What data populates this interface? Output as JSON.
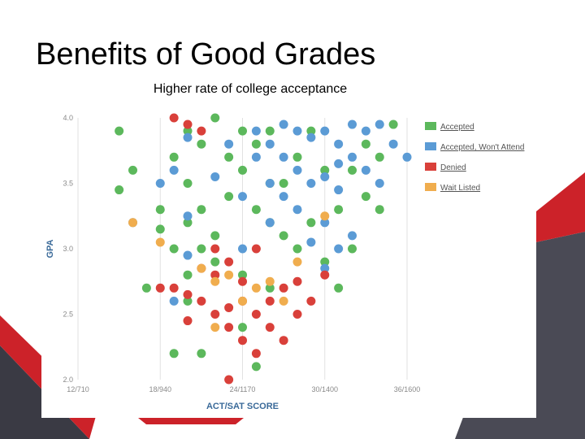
{
  "slide": {
    "title": "Benefits of Good Grades",
    "subtitle": "Higher rate of college acceptance"
  },
  "colors": {
    "accepted": "#5cb85c",
    "accepted_wont_attend": "#5b9bd5",
    "denied": "#d9403a",
    "wait_listed": "#f0ad4e",
    "accent_red": "#cc2229",
    "accent_gray": "#3a3a44"
  },
  "chart_data": {
    "type": "scatter",
    "title": "",
    "xlabel": "ACT/SAT SCORE",
    "ylabel": "GPA",
    "x_ticks": [
      "12/710",
      "18/940",
      "24/1170",
      "30/1400",
      "36/1600"
    ],
    "x_tick_values": [
      12,
      18,
      24,
      30,
      36
    ],
    "xlim": [
      12,
      36
    ],
    "y_ticks": [
      "2.0",
      "2.5",
      "3.0",
      "3.5",
      "4.0"
    ],
    "y_tick_values": [
      2.0,
      2.5,
      3.0,
      3.5,
      4.0
    ],
    "ylim": [
      2.0,
      4.0
    ],
    "grid": "vertical",
    "legend_position": "right",
    "series": [
      {
        "name": "Accepted",
        "color": "#5cb85c",
        "points": [
          [
            15,
            3.9
          ],
          [
            16,
            3.6
          ],
          [
            15,
            3.45
          ],
          [
            19,
            3.0
          ],
          [
            18,
            3.3
          ],
          [
            19,
            3.7
          ],
          [
            20,
            3.5
          ],
          [
            20,
            3.2
          ],
          [
            21,
            3.3
          ],
          [
            21,
            3.0
          ],
          [
            22,
            3.1
          ],
          [
            23,
            3.4
          ],
          [
            24,
            3.6
          ],
          [
            25,
            3.8
          ],
          [
            26,
            3.2
          ],
          [
            27,
            3.5
          ],
          [
            28,
            3.7
          ],
          [
            29,
            3.9
          ],
          [
            30,
            3.6
          ],
          [
            31,
            3.3
          ],
          [
            32,
            3.0
          ],
          [
            33,
            3.4
          ],
          [
            34,
            3.7
          ],
          [
            35,
            3.95
          ],
          [
            22,
            2.9
          ],
          [
            24,
            2.8
          ],
          [
            26,
            2.7
          ],
          [
            20,
            2.6
          ],
          [
            19,
            2.2
          ],
          [
            21,
            2.2
          ],
          [
            25,
            2.1
          ],
          [
            24,
            2.4
          ],
          [
            20,
            2.8
          ],
          [
            28,
            3.0
          ],
          [
            30,
            2.9
          ],
          [
            31,
            2.7
          ],
          [
            23,
            3.7
          ],
          [
            26,
            3.9
          ],
          [
            29,
            3.2
          ],
          [
            27,
            3.1
          ],
          [
            21,
            3.8
          ],
          [
            22,
            4.0
          ],
          [
            18,
            3.15
          ],
          [
            17,
            2.7
          ],
          [
            25,
            3.3
          ],
          [
            32,
            3.6
          ],
          [
            34,
            3.3
          ],
          [
            33,
            3.8
          ],
          [
            24,
            3.9
          ],
          [
            26,
            3.5
          ],
          [
            20,
            3.9
          ]
        ]
      },
      {
        "name": "Accepted, Won't Attend",
        "color": "#5b9bd5",
        "points": [
          [
            25,
            3.9
          ],
          [
            26,
            3.8
          ],
          [
            27,
            3.7
          ],
          [
            28,
            3.6
          ],
          [
            29,
            3.5
          ],
          [
            30,
            3.9
          ],
          [
            31,
            3.8
          ],
          [
            32,
            3.7
          ],
          [
            33,
            3.6
          ],
          [
            34,
            3.5
          ],
          [
            27,
            3.95
          ],
          [
            29,
            3.85
          ],
          [
            31,
            3.65
          ],
          [
            33,
            3.9
          ],
          [
            26,
            3.5
          ],
          [
            28,
            3.3
          ],
          [
            30,
            3.2
          ],
          [
            32,
            3.1
          ],
          [
            24,
            3.4
          ],
          [
            25,
            3.7
          ],
          [
            29,
            3.05
          ],
          [
            31,
            3.45
          ],
          [
            34,
            3.95
          ],
          [
            27,
            3.4
          ],
          [
            23,
            3.8
          ],
          [
            20,
            3.85
          ],
          [
            19,
            3.6
          ],
          [
            18,
            3.5
          ],
          [
            16,
            3.2
          ],
          [
            20,
            3.25
          ],
          [
            35,
            3.8
          ],
          [
            36,
            3.7
          ],
          [
            30,
            3.55
          ],
          [
            28,
            3.9
          ],
          [
            26,
            3.2
          ],
          [
            32,
            3.95
          ],
          [
            24,
            3.0
          ],
          [
            22,
            3.55
          ],
          [
            19,
            2.6
          ],
          [
            20,
            2.95
          ],
          [
            30,
            2.85
          ],
          [
            31,
            3.0
          ]
        ]
      },
      {
        "name": "Denied",
        "color": "#d9403a",
        "points": [
          [
            19,
            4.0
          ],
          [
            20,
            3.95
          ],
          [
            21,
            3.9
          ],
          [
            19,
            2.7
          ],
          [
            20,
            2.65
          ],
          [
            21,
            2.85
          ],
          [
            22,
            2.8
          ],
          [
            23,
            2.9
          ],
          [
            24,
            2.6
          ],
          [
            25,
            2.5
          ],
          [
            26,
            2.4
          ],
          [
            27,
            2.3
          ],
          [
            22,
            2.5
          ],
          [
            23,
            2.4
          ],
          [
            24,
            2.3
          ],
          [
            25,
            2.2
          ],
          [
            26,
            2.6
          ],
          [
            27,
            2.7
          ],
          [
            28,
            2.5
          ],
          [
            29,
            2.6
          ],
          [
            30,
            2.8
          ],
          [
            18,
            2.7
          ],
          [
            21,
            2.6
          ],
          [
            23,
            2.0
          ],
          [
            25,
            3.0
          ],
          [
            22,
            3.0
          ],
          [
            24,
            2.75
          ],
          [
            20,
            2.45
          ],
          [
            28,
            2.75
          ],
          [
            23,
            2.55
          ]
        ]
      },
      {
        "name": "Wait Listed",
        "color": "#f0ad4e",
        "points": [
          [
            16,
            3.2
          ],
          [
            18,
            3.05
          ],
          [
            21,
            2.85
          ],
          [
            22,
            2.75
          ],
          [
            24,
            2.6
          ],
          [
            25,
            2.7
          ],
          [
            26,
            2.75
          ],
          [
            27,
            2.6
          ],
          [
            28,
            2.9
          ],
          [
            22,
            2.4
          ],
          [
            23,
            2.8
          ],
          [
            30,
            3.25
          ]
        ]
      }
    ]
  }
}
